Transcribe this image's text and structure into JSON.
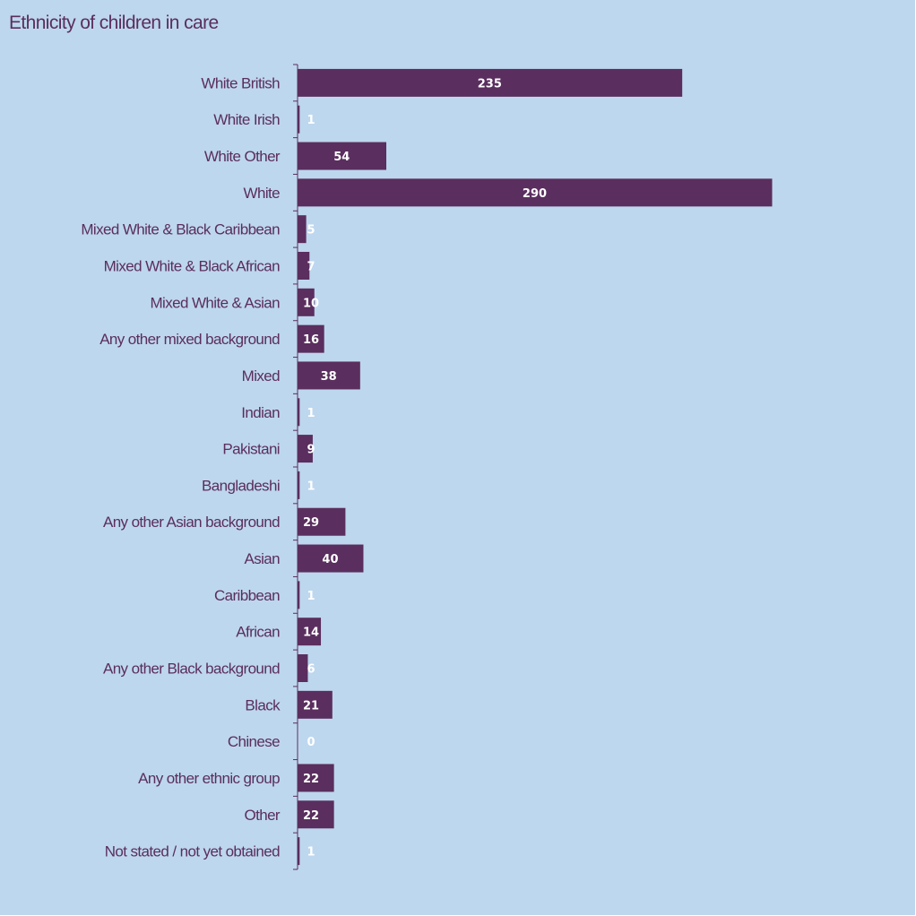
{
  "colors": {
    "background": "#bdd7ee",
    "bar": "#5a2e5e",
    "text": "#5a2e5e",
    "value_label": "#ffffff"
  },
  "chart_data": {
    "type": "bar",
    "orientation": "horizontal",
    "title": "Ethnicity of children in care",
    "xlabel": "",
    "ylabel": "",
    "xlim": [
      0,
      290
    ],
    "grid": false,
    "legend": "none",
    "categories": [
      "White British",
      "White Irish",
      "White Other",
      "White",
      "Mixed White & Black Caribbean",
      "Mixed White & Black African",
      "Mixed White & Asian",
      "Any other mixed background",
      "Mixed",
      "Indian",
      "Pakistani",
      "Bangladeshi",
      "Any other Asian background",
      "Asian",
      "Caribbean",
      "African",
      "Any other Black background",
      "Black",
      "Chinese",
      "Any other ethnic group",
      "Other",
      "Not stated / not yet obtained"
    ],
    "values": [
      235,
      1,
      54,
      290,
      5,
      7,
      10,
      16,
      38,
      1,
      9,
      1,
      29,
      40,
      1,
      14,
      6,
      21,
      0,
      22,
      22,
      1
    ]
  }
}
